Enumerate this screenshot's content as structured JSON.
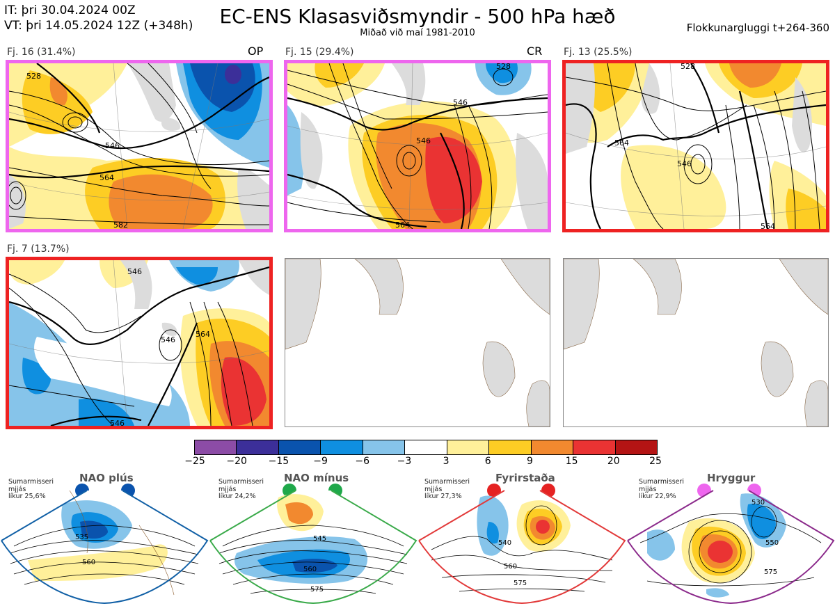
{
  "header": {
    "it_line": "IT: þri 30.04.2024 00Z",
    "vt_line": "VT: þri 14.05.2024 12Z  (+348h)",
    "title": "EC-ENS Klasasviðsmyndir - 500 hPa hæð",
    "subtitle": "Miðað við maí 1981-2010",
    "window": "Flokkunargluggi t+264-360"
  },
  "panels": [
    {
      "label": "Fj. 16 (31.4%)",
      "tag": "OP",
      "border": "#ee66ee",
      "contours": [
        "528",
        "546",
        "564",
        "582"
      ]
    },
    {
      "label": "Fj. 15 (29.4%)",
      "tag": "CR",
      "border": "#ee66ee",
      "contours": [
        "528",
        "546",
        "546",
        "564"
      ]
    },
    {
      "label": "Fj. 13 (25.5%)",
      "tag": "",
      "border": "#ee2222",
      "contours": [
        "528",
        "546",
        "564",
        "564"
      ]
    },
    {
      "label": "Fj. 7 (13.7%)",
      "tag": "",
      "border": "#ee2222",
      "contours": [
        "546",
        "546",
        "546",
        "564"
      ]
    }
  ],
  "colorbar": {
    "ticks": [
      "−25",
      "−20",
      "−15",
      "−9",
      "−6",
      "−3",
      "3",
      "6",
      "9",
      "15",
      "20",
      "25"
    ],
    "colors": [
      "#8c4ca6",
      "#3c2f99",
      "#0a53ad",
      "#0f8fe0",
      "#86c4ea",
      "#ffffff",
      "#fff09a",
      "#fdcd24",
      "#f2892f",
      "#ea3333",
      "#b41414"
    ]
  },
  "regimes": [
    {
      "title": "NAO plús",
      "note": [
        "Sumarmisseri",
        "mjjás",
        "líkur 25,6%"
      ],
      "dot_color": "#0a53ad",
      "frame": "#1160a6",
      "contours": [
        "535",
        "560"
      ]
    },
    {
      "title": "NAO mínus",
      "note": [
        "Sumarmisseri",
        "mjjás",
        "líkur 24,2%"
      ],
      "dot_color": "#1fa84a",
      "frame": "#3aaa4a",
      "contours": [
        "545",
        "560",
        "575"
      ]
    },
    {
      "title": "Fyrirstaða",
      "note": [
        "Sumarmisseri",
        "mjjás",
        "líkur 27,3%"
      ],
      "dot_color": "#e52222",
      "frame": "#e23a3a",
      "contours": [
        "540",
        "560",
        "575"
      ]
    },
    {
      "title": "Hryggur",
      "note": [
        "Sumarmisseri",
        "mjjás",
        "líkur 22,9%"
      ],
      "dot_color": "#ee66ee",
      "frame": "#8b2a8b",
      "contours": [
        "530",
        "550",
        "575"
      ]
    }
  ]
}
